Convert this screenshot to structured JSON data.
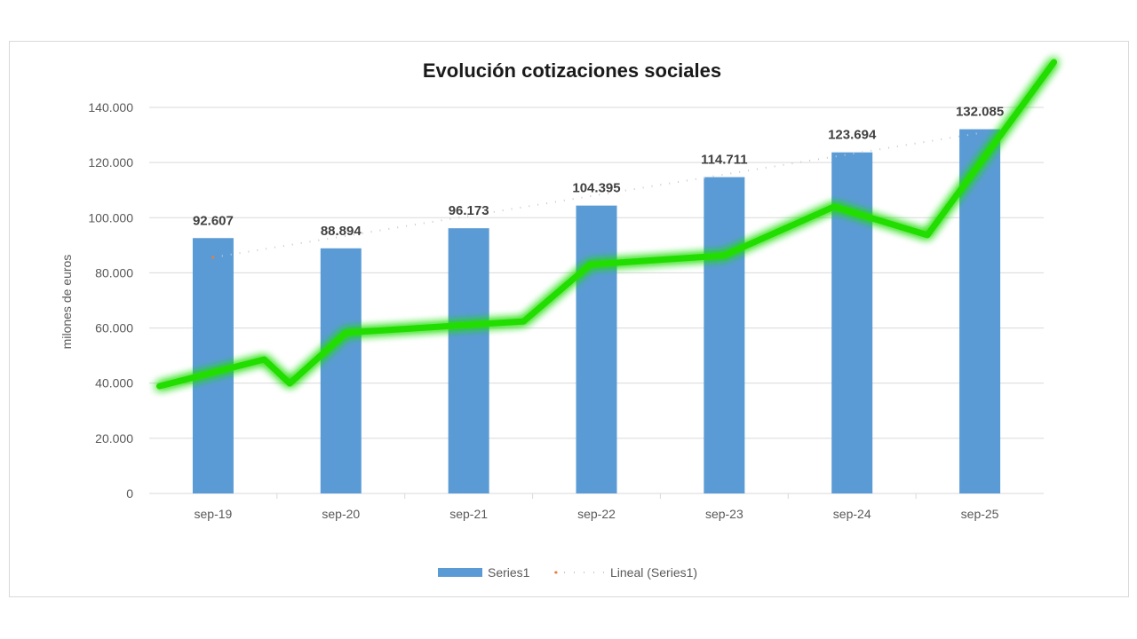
{
  "chart_data": {
    "type": "bar",
    "title": "Evolución cotizaciones sociales",
    "xlabel": "",
    "ylabel": "milones de euros",
    "ylim": [
      0,
      140000
    ],
    "yticks": [
      0,
      20000,
      40000,
      60000,
      80000,
      100000,
      120000,
      140000
    ],
    "ytick_labels": [
      "0",
      "20.000",
      "40.000",
      "60.000",
      "80.000",
      "100.000",
      "120.000",
      "140.000"
    ],
    "grid": true,
    "categories": [
      "sep-19",
      "sep-20",
      "sep-21",
      "sep-22",
      "sep-23",
      "sep-24",
      "sep-25"
    ],
    "series": [
      {
        "name": "Series1",
        "values": [
          92607,
          88894,
          96173,
          104395,
          114711,
          123694,
          132085
        ],
        "labels": [
          "92.607",
          "88.894",
          "96.173",
          "104.395",
          "114.711",
          "123.694",
          "132.085"
        ],
        "color": "#5b9bd5"
      }
    ],
    "trendline": {
      "name": "Lineal (Series1)",
      "type": "linear",
      "start": 85600,
      "end": 130700,
      "color": "#c9c9c9"
    },
    "annotation_line": {
      "color": "#22dd00",
      "points": [
        [
          -0.42,
          38900
        ],
        [
          0.4,
          48600
        ],
        [
          0.6,
          39900
        ],
        [
          1.04,
          58300
        ],
        [
          2.43,
          62400
        ],
        [
          2.95,
          83000
        ],
        [
          4.0,
          86300
        ],
        [
          4.86,
          104000
        ],
        [
          5.59,
          93700
        ],
        [
          6.58,
          156400
        ]
      ]
    },
    "legend": {
      "placement": "bottom",
      "entries": [
        "Series1",
        "Lineal (Series1)"
      ]
    }
  }
}
